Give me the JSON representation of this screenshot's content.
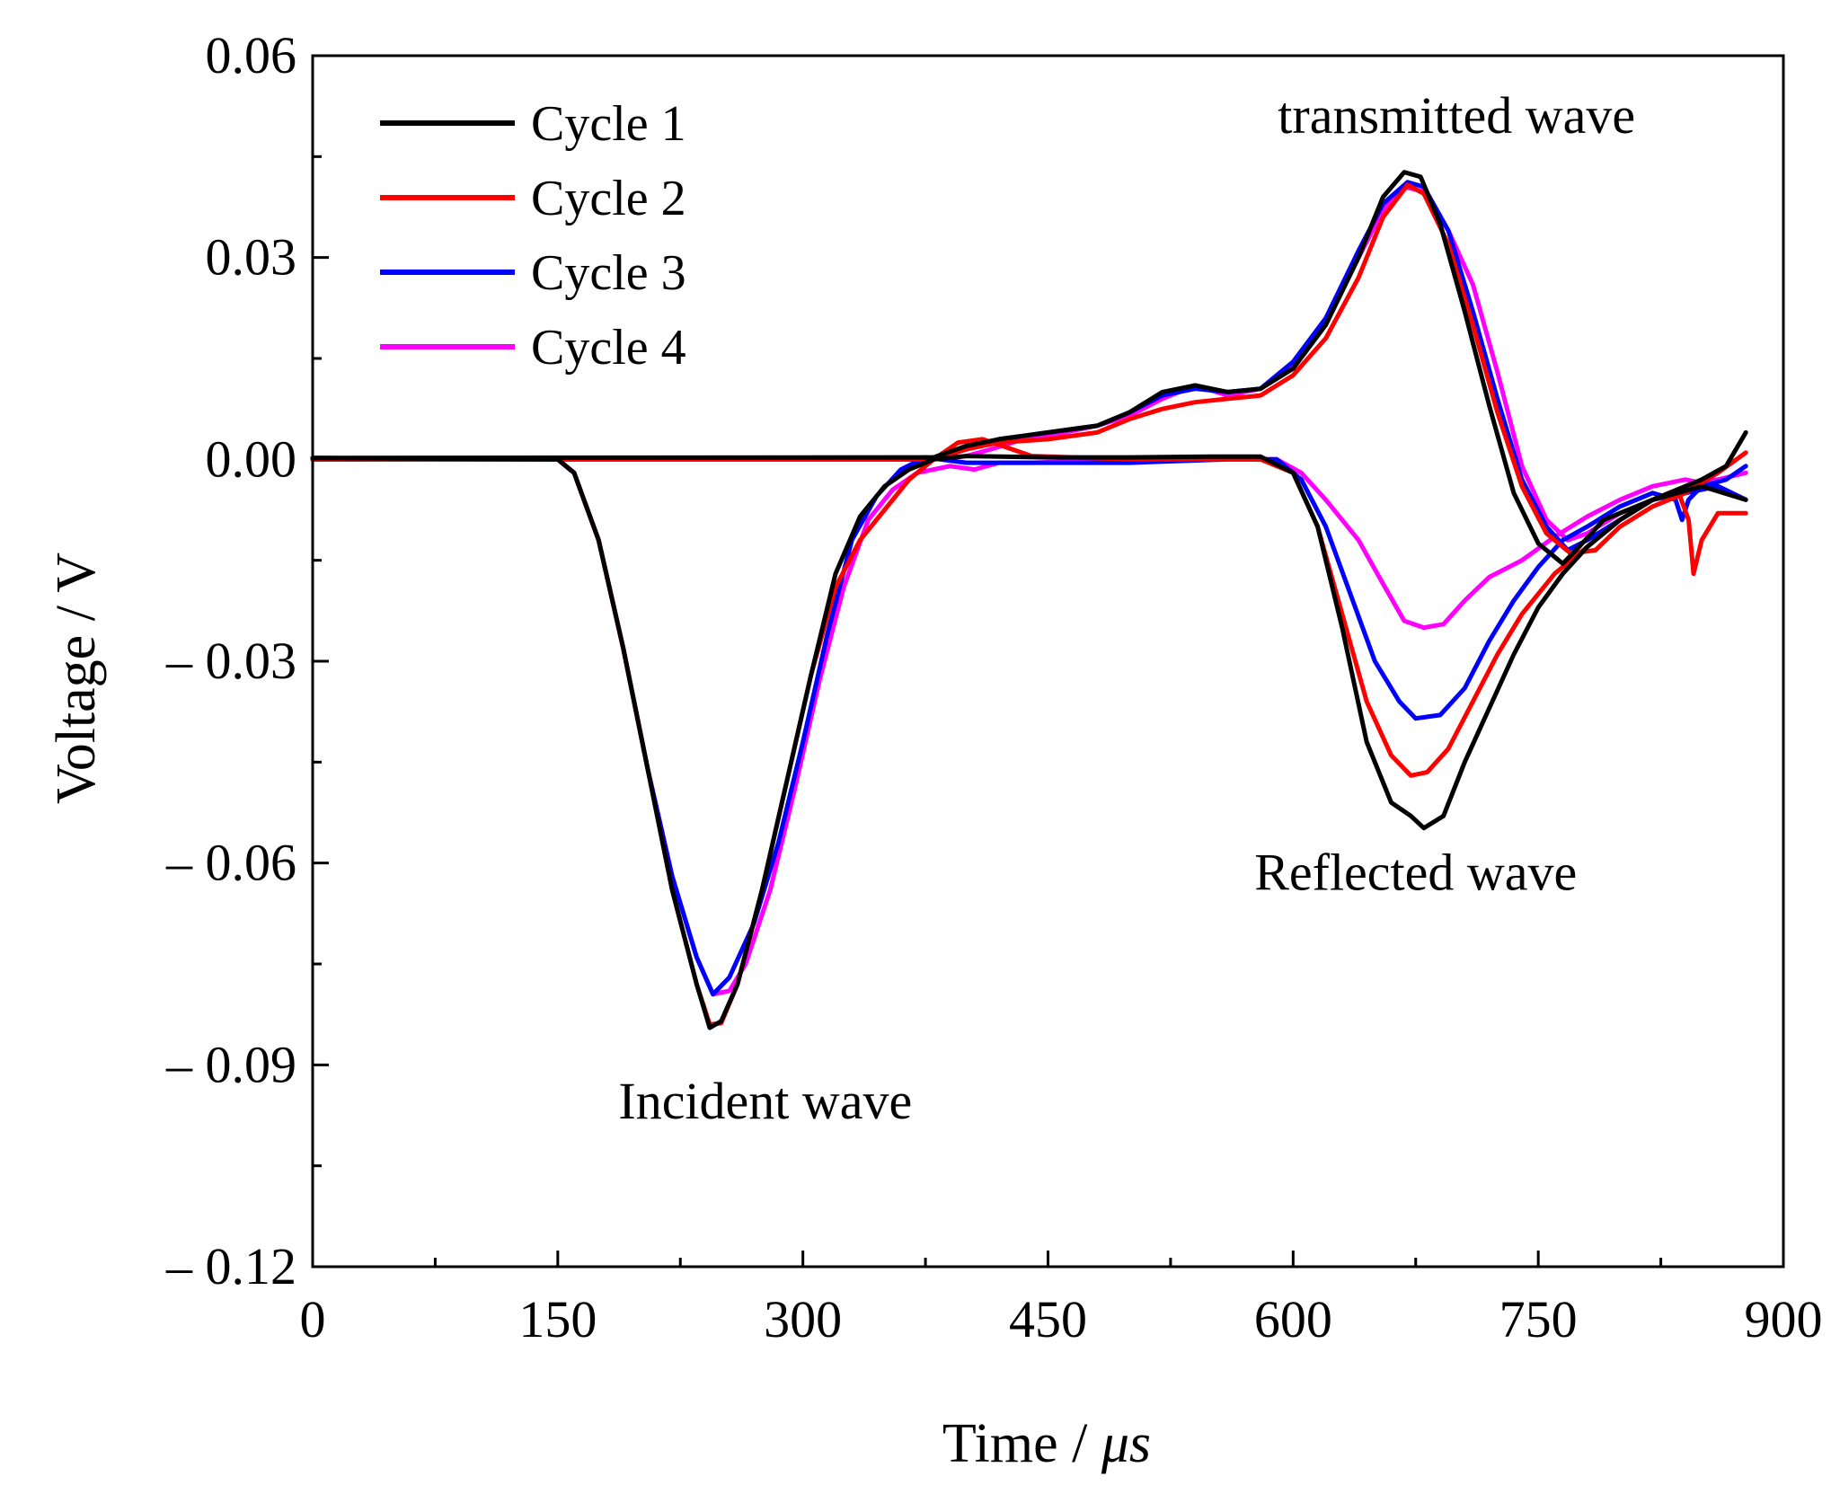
{
  "chart_data": {
    "type": "line",
    "xlabel": "Time / ",
    "xlabel_unit": "μs",
    "ylabel": "Voltage / V",
    "xlim": [
      0,
      900
    ],
    "ylim": [
      -0.12,
      0.06
    ],
    "x_ticks": [
      {
        "value": 0,
        "label": "0"
      },
      {
        "value": 150,
        "label": "150"
      },
      {
        "value": 300,
        "label": "300"
      },
      {
        "value": 450,
        "label": "450"
      },
      {
        "value": 600,
        "label": "600"
      },
      {
        "value": 750,
        "label": "750"
      },
      {
        "value": 900,
        "label": "900"
      }
    ],
    "y_ticks": [
      {
        "value": 0.06,
        "label": "0.06"
      },
      {
        "value": 0.03,
        "label": "0.03"
      },
      {
        "value": 0.0,
        "label": "0.00"
      },
      {
        "value": -0.03,
        "label": "– 0.03"
      },
      {
        "value": -0.06,
        "label": "– 0.06"
      },
      {
        "value": -0.09,
        "label": "– 0.09"
      },
      {
        "value": -0.12,
        "label": "– 0.12"
      }
    ],
    "legend_position": "top-left",
    "annotations": [
      {
        "text": "transmitted wave",
        "x": 700,
        "y": 0.0485
      },
      {
        "text": "Reflected wave",
        "x": 675,
        "y": -0.064
      },
      {
        "text": "Incident wave",
        "x": 277,
        "y": -0.098
      }
    ],
    "series": [
      {
        "name": "Cycle 1",
        "color": "#000000",
        "incident": [
          [
            0,
            0.0002
          ],
          [
            150,
            0.0
          ],
          [
            160,
            -0.002
          ],
          [
            175,
            -0.012
          ],
          [
            190,
            -0.028
          ],
          [
            205,
            -0.046
          ],
          [
            220,
            -0.064
          ],
          [
            235,
            -0.078
          ],
          [
            243,
            -0.0845
          ],
          [
            250,
            -0.0835
          ],
          [
            260,
            -0.078
          ],
          [
            275,
            -0.064
          ],
          [
            290,
            -0.048
          ],
          [
            305,
            -0.032
          ],
          [
            320,
            -0.017
          ],
          [
            335,
            -0.0085
          ],
          [
            350,
            -0.004
          ],
          [
            365,
            -0.0015
          ],
          [
            380,
            0.0
          ],
          [
            400,
            0.0005
          ],
          [
            450,
            0.0003
          ],
          [
            500,
            0.0003
          ],
          [
            550,
            0.0004
          ],
          [
            580,
            0.0004
          ],
          [
            600,
            -0.002
          ],
          [
            615,
            -0.01
          ],
          [
            630,
            -0.025
          ],
          [
            645,
            -0.042
          ],
          [
            660,
            -0.051
          ],
          [
            672,
            -0.053
          ],
          [
            680,
            -0.0548
          ],
          [
            692,
            -0.053
          ],
          [
            705,
            -0.045
          ],
          [
            720,
            -0.037
          ],
          [
            735,
            -0.029
          ],
          [
            750,
            -0.022
          ],
          [
            765,
            -0.017
          ],
          [
            780,
            -0.013
          ],
          [
            800,
            -0.009
          ],
          [
            820,
            -0.006
          ],
          [
            850,
            -0.004
          ],
          [
            877,
            -0.006
          ]
        ],
        "transmitted": [
          [
            0,
            0.0002
          ],
          [
            380,
            0.0003
          ],
          [
            400,
            0.002
          ],
          [
            420,
            0.003
          ],
          [
            450,
            0.004
          ],
          [
            480,
            0.005
          ],
          [
            500,
            0.007
          ],
          [
            520,
            0.01
          ],
          [
            540,
            0.011
          ],
          [
            560,
            0.01
          ],
          [
            580,
            0.0105
          ],
          [
            600,
            0.0135
          ],
          [
            620,
            0.02
          ],
          [
            640,
            0.03
          ],
          [
            655,
            0.039
          ],
          [
            668,
            0.0427
          ],
          [
            678,
            0.042
          ],
          [
            690,
            0.035
          ],
          [
            705,
            0.022
          ],
          [
            720,
            0.008
          ],
          [
            735,
            -0.005
          ],
          [
            750,
            -0.0125
          ],
          [
            765,
            -0.0155
          ],
          [
            775,
            -0.013
          ],
          [
            790,
            -0.009
          ],
          [
            810,
            -0.007
          ],
          [
            830,
            -0.005
          ],
          [
            850,
            -0.003
          ],
          [
            865,
            -0.001
          ],
          [
            877,
            0.004
          ]
        ]
      },
      {
        "name": "Cycle 2",
        "color": "#ff0000",
        "incident": [
          [
            0,
            0.0
          ],
          [
            150,
            0.0
          ],
          [
            160,
            -0.002
          ],
          [
            175,
            -0.012
          ],
          [
            190,
            -0.028
          ],
          [
            205,
            -0.046
          ],
          [
            220,
            -0.064
          ],
          [
            235,
            -0.078
          ],
          [
            243,
            -0.084
          ],
          [
            250,
            -0.0838
          ],
          [
            260,
            -0.078
          ],
          [
            275,
            -0.064
          ],
          [
            290,
            -0.048
          ],
          [
            305,
            -0.032
          ],
          [
            320,
            -0.019
          ],
          [
            335,
            -0.012
          ],
          [
            350,
            -0.0075
          ],
          [
            365,
            -0.003
          ],
          [
            380,
            0.0
          ],
          [
            395,
            0.0025
          ],
          [
            410,
            0.003
          ],
          [
            440,
            0.0005
          ],
          [
            500,
            0.0
          ],
          [
            580,
            0.0
          ],
          [
            600,
            -0.002
          ],
          [
            615,
            -0.01
          ],
          [
            630,
            -0.023
          ],
          [
            645,
            -0.036
          ],
          [
            660,
            -0.044
          ],
          [
            672,
            -0.047
          ],
          [
            682,
            -0.0465
          ],
          [
            695,
            -0.043
          ],
          [
            710,
            -0.036
          ],
          [
            725,
            -0.029
          ],
          [
            740,
            -0.023
          ],
          [
            760,
            -0.017
          ],
          [
            780,
            -0.013
          ],
          [
            800,
            -0.009
          ],
          [
            820,
            -0.006
          ],
          [
            836,
            -0.005
          ],
          [
            842,
            -0.009
          ],
          [
            845,
            -0.017
          ],
          [
            850,
            -0.012
          ],
          [
            860,
            -0.008
          ],
          [
            877,
            -0.008
          ]
        ],
        "transmitted": [
          [
            0,
            0.0
          ],
          [
            380,
            0.0
          ],
          [
            400,
            0.0015
          ],
          [
            420,
            0.0025
          ],
          [
            450,
            0.003
          ],
          [
            480,
            0.004
          ],
          [
            500,
            0.006
          ],
          [
            520,
            0.0075
          ],
          [
            540,
            0.0085
          ],
          [
            560,
            0.009
          ],
          [
            580,
            0.0095
          ],
          [
            600,
            0.0125
          ],
          [
            620,
            0.018
          ],
          [
            640,
            0.027
          ],
          [
            655,
            0.036
          ],
          [
            670,
            0.0408
          ],
          [
            680,
            0.0395
          ],
          [
            695,
            0.032
          ],
          [
            710,
            0.02
          ],
          [
            725,
            0.007
          ],
          [
            740,
            -0.004
          ],
          [
            755,
            -0.011
          ],
          [
            770,
            -0.014
          ],
          [
            785,
            -0.0135
          ],
          [
            800,
            -0.01
          ],
          [
            820,
            -0.007
          ],
          [
            840,
            -0.005
          ],
          [
            860,
            -0.002
          ],
          [
            877,
            0.001
          ]
        ]
      },
      {
        "name": "Cycle 3",
        "color": "#0000ff",
        "incident": [
          [
            0,
            0.0
          ],
          [
            150,
            0.0
          ],
          [
            160,
            -0.002
          ],
          [
            175,
            -0.012
          ],
          [
            190,
            -0.028
          ],
          [
            205,
            -0.046
          ],
          [
            220,
            -0.062
          ],
          [
            235,
            -0.074
          ],
          [
            245,
            -0.0795
          ],
          [
            255,
            -0.077
          ],
          [
            270,
            -0.069
          ],
          [
            285,
            -0.057
          ],
          [
            300,
            -0.042
          ],
          [
            315,
            -0.026
          ],
          [
            330,
            -0.012
          ],
          [
            345,
            -0.0055
          ],
          [
            360,
            -0.0015
          ],
          [
            375,
            0.0003
          ],
          [
            400,
            -0.0005
          ],
          [
            440,
            -0.0005
          ],
          [
            500,
            -0.0005
          ],
          [
            560,
            0.0
          ],
          [
            590,
            0.0
          ],
          [
            605,
            -0.003
          ],
          [
            620,
            -0.01
          ],
          [
            635,
            -0.02
          ],
          [
            650,
            -0.03
          ],
          [
            665,
            -0.036
          ],
          [
            675,
            -0.0385
          ],
          [
            690,
            -0.038
          ],
          [
            705,
            -0.034
          ],
          [
            720,
            -0.027
          ],
          [
            735,
            -0.021
          ],
          [
            750,
            -0.016
          ],
          [
            765,
            -0.012
          ],
          [
            780,
            -0.01
          ],
          [
            800,
            -0.007
          ],
          [
            820,
            -0.005
          ],
          [
            834,
            -0.006
          ],
          [
            838,
            -0.009
          ],
          [
            842,
            -0.006
          ],
          [
            850,
            -0.004
          ],
          [
            865,
            -0.003
          ],
          [
            877,
            -0.001
          ]
        ],
        "transmitted": [
          [
            0,
            0.0
          ],
          [
            380,
            0.0
          ],
          [
            400,
            0.0015
          ],
          [
            420,
            0.003
          ],
          [
            450,
            0.004
          ],
          [
            480,
            0.005
          ],
          [
            500,
            0.007
          ],
          [
            520,
            0.0095
          ],
          [
            540,
            0.0105
          ],
          [
            560,
            0.01
          ],
          [
            580,
            0.0105
          ],
          [
            600,
            0.0145
          ],
          [
            620,
            0.021
          ],
          [
            640,
            0.031
          ],
          [
            655,
            0.038
          ],
          [
            670,
            0.0412
          ],
          [
            680,
            0.0405
          ],
          [
            695,
            0.034
          ],
          [
            710,
            0.022
          ],
          [
            725,
            0.009
          ],
          [
            740,
            -0.003
          ],
          [
            755,
            -0.01
          ],
          [
            768,
            -0.0135
          ],
          [
            780,
            -0.012
          ],
          [
            800,
            -0.009
          ],
          [
            820,
            -0.006
          ],
          [
            840,
            -0.005
          ],
          [
            860,
            -0.004
          ],
          [
            877,
            -0.006
          ]
        ]
      },
      {
        "name": "Cycle 4",
        "color": "#ff00ff",
        "incident": [
          [
            0,
            0.0
          ],
          [
            150,
            0.0
          ],
          [
            160,
            -0.002
          ],
          [
            175,
            -0.012
          ],
          [
            190,
            -0.028
          ],
          [
            205,
            -0.046
          ],
          [
            220,
            -0.062
          ],
          [
            235,
            -0.074
          ],
          [
            245,
            -0.0795
          ],
          [
            255,
            -0.079
          ],
          [
            265,
            -0.075
          ],
          [
            280,
            -0.064
          ],
          [
            295,
            -0.049
          ],
          [
            310,
            -0.033
          ],
          [
            325,
            -0.019
          ],
          [
            340,
            -0.009
          ],
          [
            355,
            -0.0045
          ],
          [
            370,
            -0.002
          ],
          [
            390,
            -0.001
          ],
          [
            405,
            -0.0015
          ],
          [
            420,
            -0.0005
          ],
          [
            440,
            -0.0005
          ],
          [
            500,
            0.0
          ],
          [
            560,
            0.0
          ],
          [
            590,
            0.0
          ],
          [
            605,
            -0.002
          ],
          [
            620,
            -0.006
          ],
          [
            640,
            -0.012
          ],
          [
            655,
            -0.0185
          ],
          [
            668,
            -0.024
          ],
          [
            680,
            -0.025
          ],
          [
            692,
            -0.0245
          ],
          [
            705,
            -0.021
          ],
          [
            720,
            -0.0175
          ],
          [
            740,
            -0.015
          ],
          [
            760,
            -0.0115
          ],
          [
            780,
            -0.0085
          ],
          [
            800,
            -0.006
          ],
          [
            820,
            -0.004
          ],
          [
            840,
            -0.003
          ],
          [
            860,
            -0.004
          ],
          [
            877,
            -0.006
          ]
        ],
        "transmitted": [
          [
            0,
            0.0
          ],
          [
            380,
            0.0
          ],
          [
            400,
            0.0005
          ],
          [
            415,
            0.0015
          ],
          [
            435,
            0.003
          ],
          [
            460,
            0.004
          ],
          [
            480,
            0.005
          ],
          [
            500,
            0.0065
          ],
          [
            520,
            0.009
          ],
          [
            540,
            0.011
          ],
          [
            560,
            0.0095
          ],
          [
            580,
            0.0105
          ],
          [
            600,
            0.014
          ],
          [
            620,
            0.0205
          ],
          [
            640,
            0.03
          ],
          [
            655,
            0.037
          ],
          [
            668,
            0.0405
          ],
          [
            680,
            0.0398
          ],
          [
            695,
            0.034
          ],
          [
            710,
            0.026
          ],
          [
            725,
            0.013
          ],
          [
            740,
            -0.001
          ],
          [
            755,
            -0.009
          ],
          [
            768,
            -0.012
          ],
          [
            780,
            -0.011
          ],
          [
            800,
            -0.008
          ],
          [
            820,
            -0.006
          ],
          [
            840,
            -0.004
          ],
          [
            860,
            -0.003
          ],
          [
            877,
            -0.002
          ]
        ]
      }
    ]
  }
}
